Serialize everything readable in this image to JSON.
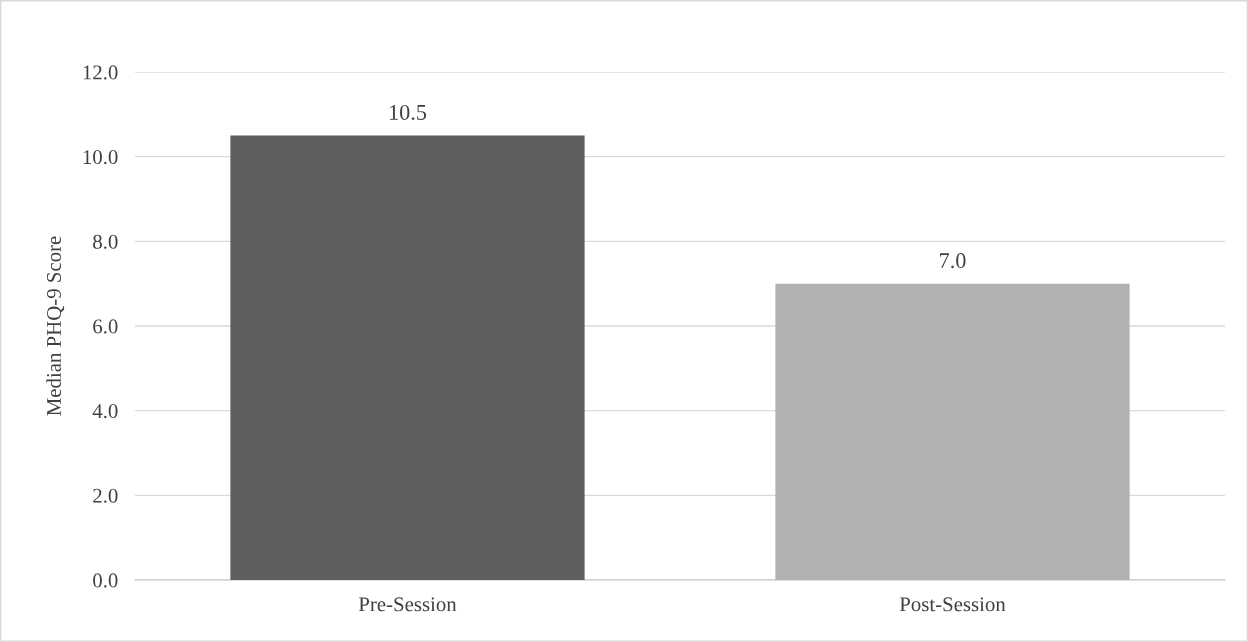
{
  "chart_data": {
    "type": "bar",
    "ylabel": "Median PHQ-9 Score",
    "categories": [
      "Pre-Session",
      "Post-Session"
    ],
    "values": [
      10.5,
      7.0
    ],
    "colors": [
      "#5f5f5f",
      "#b2b2b2"
    ],
    "value_labels": [
      "10.5",
      "7.0"
    ],
    "ylim": [
      0,
      12
    ],
    "yticks": [
      {
        "value": 0,
        "label": "0.0"
      },
      {
        "value": 2,
        "label": "2.0"
      },
      {
        "value": 4,
        "label": "4.0"
      },
      {
        "value": 6,
        "label": "6.0"
      },
      {
        "value": 8,
        "label": "8.0"
      },
      {
        "value": 10,
        "label": "10.0"
      },
      {
        "value": 12,
        "label": "12.0"
      }
    ],
    "grid": "y",
    "legend": false
  }
}
